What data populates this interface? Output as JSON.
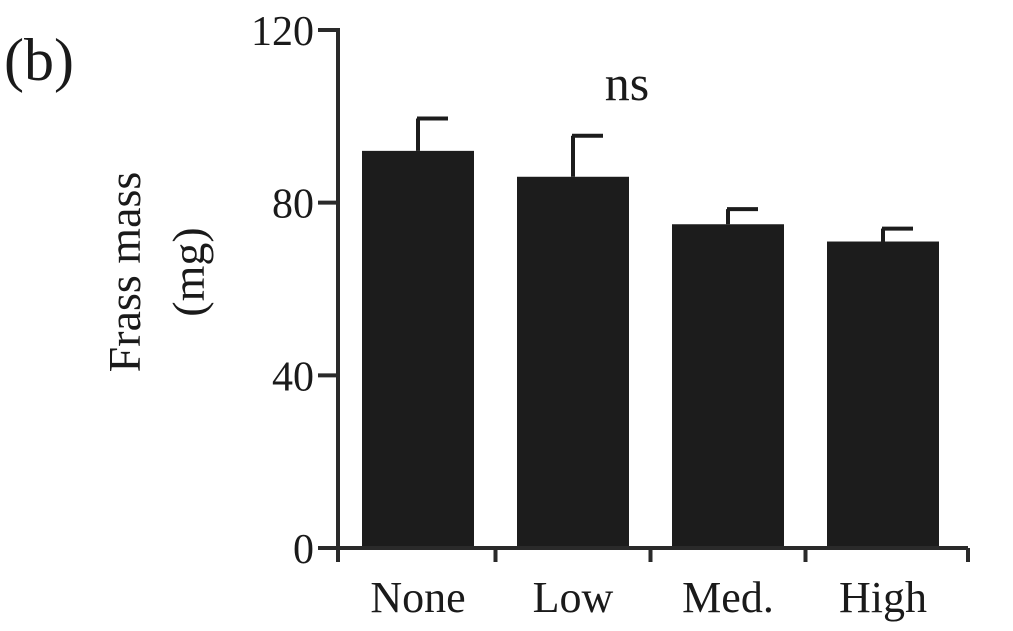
{
  "panel_label": "(b)",
  "chart_data": {
    "type": "bar",
    "categories": [
      "None",
      "Low",
      "Med.",
      "High"
    ],
    "values": [
      92,
      86,
      75,
      71
    ],
    "errors": [
      7.5,
      9.5,
      3.5,
      3.0
    ],
    "title": "",
    "xlabel": "",
    "ylabel_lines": [
      "Frass mass",
      "(mg)"
    ],
    "ylim": [
      0,
      120
    ],
    "yticks": [
      0,
      40,
      80,
      120
    ],
    "annotation": "ns",
    "grid": false,
    "bar_color": "#1c1c1c",
    "axis_color": "#2a2a2a"
  }
}
